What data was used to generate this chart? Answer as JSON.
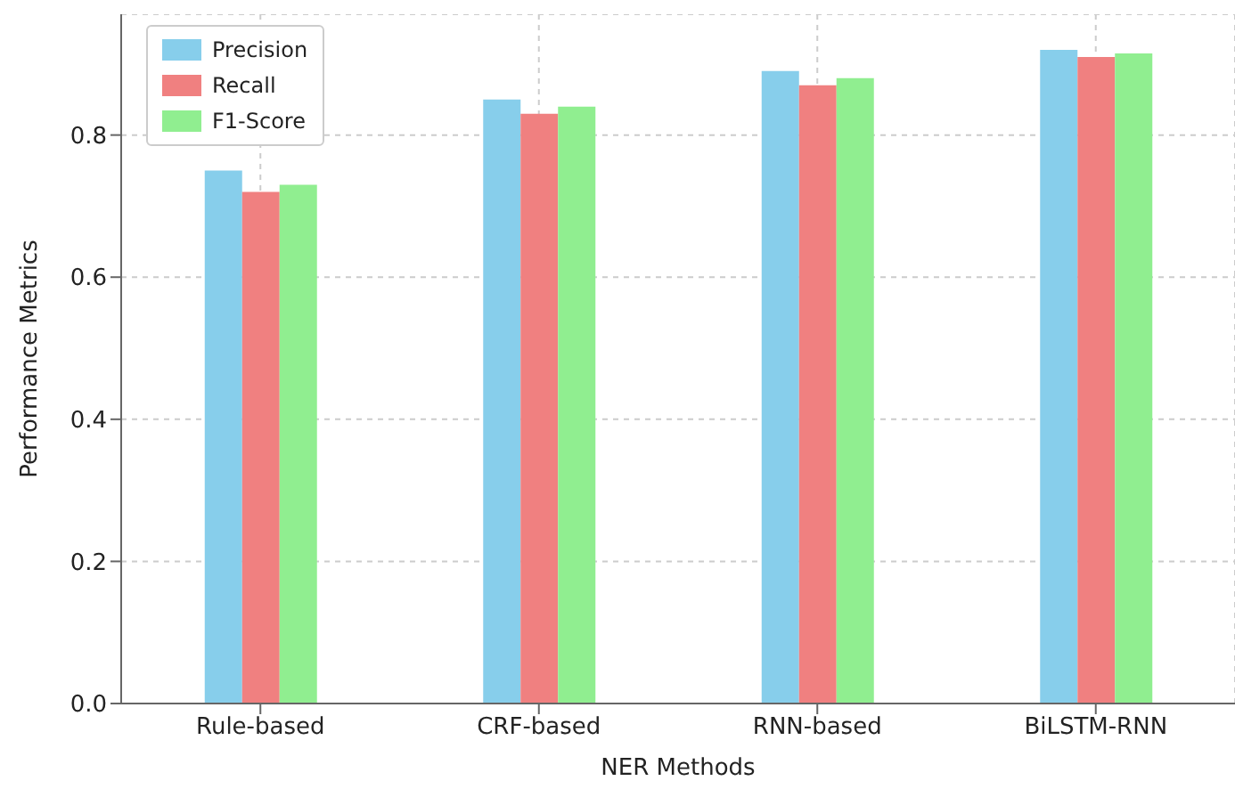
{
  "chart_data": {
    "type": "bar",
    "xlabel": "NER Methods",
    "ylabel": "Performance Metrics",
    "categories": [
      "Rule-based",
      "CRF-based",
      "RNN-based",
      "BiLSTM-RNN"
    ],
    "series": [
      {
        "name": "Precision",
        "color": "#87ceeb",
        "values": [
          0.75,
          0.85,
          0.89,
          0.92
        ]
      },
      {
        "name": "Recall",
        "color": "#f08080",
        "values": [
          0.72,
          0.83,
          0.87,
          0.91
        ]
      },
      {
        "name": "F1-Score",
        "color": "#90ee90",
        "values": [
          0.73,
          0.84,
          0.88,
          0.915
        ]
      }
    ],
    "ylim": [
      0,
      0.97
    ],
    "yticks": [
      {
        "value": 0,
        "label": "0.0"
      },
      {
        "value": 0.2,
        "label": "0.2"
      },
      {
        "value": 0.4,
        "label": "0.4"
      },
      {
        "value": 0.6,
        "label": "0.6"
      },
      {
        "value": 0.8,
        "label": "0.8"
      }
    ],
    "grid": true,
    "legend": "top left"
  }
}
